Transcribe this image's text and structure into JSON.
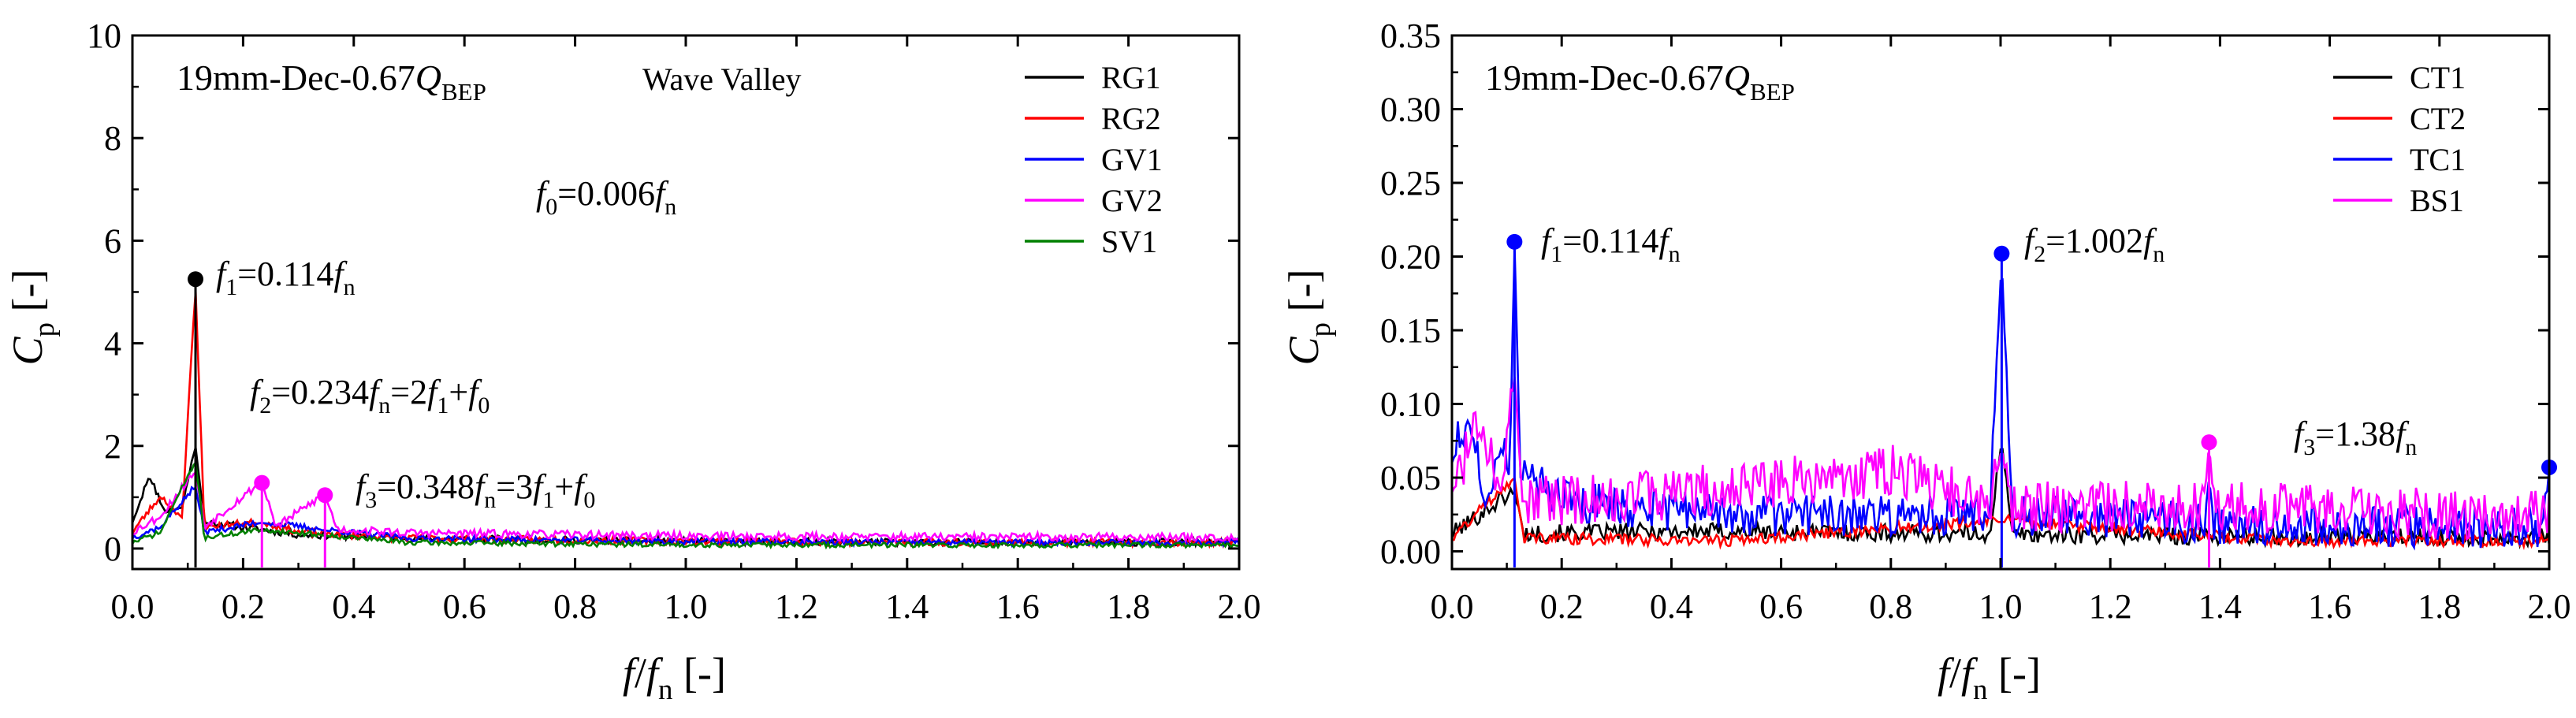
{
  "colors": {
    "black": "#000000",
    "red": "#ff0000",
    "blue": "#0000ff",
    "magenta": "#ff00ff",
    "green": "#008000"
  },
  "chart_data": [
    {
      "type": "line",
      "title": "",
      "case_label": {
        "base": "19mm-Dec-0.67",
        "var": "Q",
        "sub": "BEP"
      },
      "tag": "Wave Valley",
      "xlim": [
        0,
        2.0
      ],
      "ylim": [
        -0.4,
        10
      ],
      "xticks": [
        0.0,
        0.2,
        0.4,
        0.6,
        0.8,
        1.0,
        1.2,
        1.4,
        1.6,
        1.8,
        2.0
      ],
      "yticks": [
        0,
        2,
        4,
        6,
        8,
        10
      ],
      "xtick_labels": [
        "0.0",
        "0.2",
        "0.4",
        "0.6",
        "0.8",
        "1.0",
        "1.2",
        "1.4",
        "1.6",
        "1.8",
        "2.0"
      ],
      "ytick_labels": [
        "0",
        "2",
        "4",
        "6",
        "8",
        "10"
      ],
      "xlabel": {
        "num": "f",
        "slash": "/",
        "den": "f",
        "sub": "n",
        "unit": "[-]"
      },
      "ylabel": {
        "sym": "C",
        "sub": "p",
        "unit": "[-]"
      },
      "legend": [
        "RG1",
        "RG2",
        "GV1",
        "GV2",
        "SV1"
      ],
      "series": [
        {
          "name": "RG1",
          "color_key": "black",
          "noise_seed": 11,
          "base": 0.2,
          "noise_amp": 0.14,
          "points": [
            [
              0.0,
              0.5
            ],
            [
              0.03,
              1.4
            ],
            [
              0.06,
              0.7
            ],
            [
              0.09,
              0.8
            ],
            [
              0.114,
              2.0
            ],
            [
              0.13,
              0.5
            ],
            [
              0.2,
              0.4
            ],
            [
              0.3,
              0.25
            ],
            [
              0.5,
              0.18
            ],
            [
              1.0,
              0.12
            ],
            [
              1.5,
              0.1
            ],
            [
              2.0,
              0.1
            ]
          ]
        },
        {
          "name": "RG2",
          "color_key": "red",
          "noise_seed": 23,
          "base": 0.2,
          "noise_amp": 0.14,
          "points": [
            [
              0.0,
              0.3
            ],
            [
              0.05,
              1.0
            ],
            [
              0.09,
              0.6
            ],
            [
              0.114,
              5.1
            ],
            [
              0.13,
              0.4
            ],
            [
              0.234,
              0.5
            ],
            [
              0.3,
              0.3
            ],
            [
              0.5,
              0.18
            ],
            [
              1.0,
              0.12
            ],
            [
              1.5,
              0.1
            ],
            [
              2.0,
              0.1
            ]
          ]
        },
        {
          "name": "GV1",
          "color_key": "blue",
          "noise_seed": 37,
          "base": 0.15,
          "noise_amp": 0.12,
          "points": [
            [
              0.0,
              0.2
            ],
            [
              0.05,
              0.4
            ],
            [
              0.114,
              1.2
            ],
            [
              0.13,
              0.3
            ],
            [
              0.234,
              0.5
            ],
            [
              0.348,
              0.35
            ],
            [
              0.5,
              0.18
            ],
            [
              1.0,
              0.12
            ],
            [
              1.5,
              0.1
            ],
            [
              2.0,
              0.1
            ]
          ]
        },
        {
          "name": "GV2",
          "color_key": "magenta",
          "noise_seed": 53,
          "base": 0.25,
          "noise_amp": 0.16,
          "points": [
            [
              0.0,
              0.3
            ],
            [
              0.05,
              0.6
            ],
            [
              0.114,
              1.5
            ],
            [
              0.13,
              0.4
            ],
            [
              0.234,
              1.28
            ],
            [
              0.26,
              0.4
            ],
            [
              0.348,
              1.04
            ],
            [
              0.37,
              0.35
            ],
            [
              0.5,
              0.28
            ],
            [
              1.0,
              0.22
            ],
            [
              1.5,
              0.2
            ],
            [
              2.0,
              0.2
            ]
          ]
        },
        {
          "name": "SV1",
          "color_key": "green",
          "noise_seed": 71,
          "base": 0.12,
          "noise_amp": 0.1,
          "points": [
            [
              0.0,
              0.1
            ],
            [
              0.05,
              0.3
            ],
            [
              0.114,
              1.7
            ],
            [
              0.13,
              0.2
            ],
            [
              0.234,
              0.35
            ],
            [
              0.348,
              0.25
            ],
            [
              0.5,
              0.1
            ],
            [
              1.0,
              0.06
            ],
            [
              1.5,
              0.05
            ],
            [
              2.0,
              0.05
            ]
          ]
        }
      ],
      "markers": [
        {
          "x": 0.114,
          "y": 5.25,
          "color_key": "black"
        },
        {
          "x": 0.234,
          "y": 1.28,
          "color_key": "magenta"
        },
        {
          "x": 0.348,
          "y": 1.04,
          "color_key": "magenta"
        }
      ],
      "annotations": [
        {
          "parts": [
            [
              "i",
              "f"
            ],
            [
              "sub",
              "0"
            ],
            [
              "r",
              "=0.006"
            ],
            [
              "i",
              "f"
            ],
            [
              "sub",
              "n"
            ]
          ]
        },
        {
          "parts": [
            [
              "i",
              "f"
            ],
            [
              "sub",
              "1"
            ],
            [
              "r",
              "=0.114"
            ],
            [
              "i",
              "f"
            ],
            [
              "sub",
              "n"
            ]
          ]
        },
        {
          "parts": [
            [
              "i",
              "f"
            ],
            [
              "sub",
              "2"
            ],
            [
              "r",
              "=0.234"
            ],
            [
              "i",
              "f"
            ],
            [
              "sub",
              "n"
            ],
            [
              "r",
              "=2"
            ],
            [
              "i",
              "f"
            ],
            [
              "sub",
              "1"
            ],
            [
              "r",
              "+"
            ],
            [
              "i",
              "f"
            ],
            [
              "sub",
              "0"
            ]
          ]
        },
        {
          "parts": [
            [
              "i",
              "f"
            ],
            [
              "sub",
              "3"
            ],
            [
              "r",
              "=0.348"
            ],
            [
              "i",
              "f"
            ],
            [
              "sub",
              "n"
            ],
            [
              "r",
              "=3"
            ],
            [
              "i",
              "f"
            ],
            [
              "sub",
              "1"
            ],
            [
              "r",
              "+"
            ],
            [
              "i",
              "f"
            ],
            [
              "sub",
              "0"
            ]
          ]
        }
      ]
    },
    {
      "type": "line",
      "title": "",
      "case_label": {
        "base": "19mm-Dec-0.67",
        "var": "Q",
        "sub": "BEP"
      },
      "tag": "",
      "xlim": [
        0,
        2.0
      ],
      "ylim": [
        -0.012,
        0.35
      ],
      "xticks": [
        0.0,
        0.2,
        0.4,
        0.6,
        0.8,
        1.0,
        1.2,
        1.4,
        1.6,
        1.8,
        2.0
      ],
      "yticks": [
        0.0,
        0.05,
        0.1,
        0.15,
        0.2,
        0.25,
        0.3,
        0.35
      ],
      "xtick_labels": [
        "0.0",
        "0.2",
        "0.4",
        "0.6",
        "0.8",
        "1.0",
        "1.2",
        "1.4",
        "1.6",
        "1.8",
        "2.0"
      ],
      "ytick_labels": [
        "0.00",
        "0.05",
        "0.10",
        "0.15",
        "0.20",
        "0.25",
        "0.30",
        "0.35"
      ],
      "xlabel": {
        "num": "f",
        "slash": "/",
        "den": "f",
        "sub": "n",
        "unit": "[-]"
      },
      "ylabel": {
        "sym": "C",
        "sub": "p",
        "unit": "[-]"
      },
      "legend": [
        "CT1",
        "CT2",
        "TC1",
        "BS1"
      ],
      "series": [
        {
          "name": "CT1",
          "color_key": "black",
          "noise_seed": 101,
          "base": 0.008,
          "noise_amp": 0.012,
          "points": [
            [
              0.0,
              0.01
            ],
            [
              0.114,
              0.04
            ],
            [
              0.13,
              0.01
            ],
            [
              0.4,
              0.012
            ],
            [
              0.98,
              0.01
            ],
            [
              1.002,
              0.075
            ],
            [
              1.02,
              0.01
            ],
            [
              1.5,
              0.008
            ],
            [
              2.0,
              0.008
            ]
          ]
        },
        {
          "name": "CT2",
          "color_key": "red",
          "noise_seed": 131,
          "base": 0.006,
          "noise_amp": 0.008,
          "points": [
            [
              0.0,
              0.008
            ],
            [
              0.114,
              0.05
            ],
            [
              0.13,
              0.008
            ],
            [
              0.5,
              0.006
            ],
            [
              1.002,
              0.02
            ],
            [
              1.5,
              0.006
            ],
            [
              2.0,
              0.006
            ]
          ]
        },
        {
          "name": "TC1",
          "color_key": "blue",
          "noise_seed": 151,
          "base": 0.012,
          "noise_amp": 0.028,
          "points": [
            [
              0.0,
              0.06
            ],
            [
              0.03,
              0.09
            ],
            [
              0.06,
              0.03
            ],
            [
              0.09,
              0.07
            ],
            [
              0.105,
              0.05
            ],
            [
              0.114,
              0.21
            ],
            [
              0.125,
              0.05
            ],
            [
              0.2,
              0.03
            ],
            [
              0.5,
              0.02
            ],
            [
              0.98,
              0.02
            ],
            [
              1.002,
              0.2
            ],
            [
              1.02,
              0.02
            ],
            [
              1.37,
              0.015
            ],
            [
              1.38,
              0.05
            ],
            [
              1.39,
              0.015
            ],
            [
              1.8,
              0.012
            ],
            [
              1.99,
              0.012
            ],
            [
              2.0,
              0.057
            ]
          ]
        },
        {
          "name": "BS1",
          "color_key": "magenta",
          "noise_seed": 181,
          "base": 0.015,
          "noise_amp": 0.035,
          "points": [
            [
              0.0,
              0.04
            ],
            [
              0.05,
              0.08
            ],
            [
              0.09,
              0.04
            ],
            [
              0.114,
              0.12
            ],
            [
              0.13,
              0.03
            ],
            [
              0.3,
              0.03
            ],
            [
              0.81,
              0.05
            ],
            [
              0.98,
              0.025
            ],
            [
              1.002,
              0.07
            ],
            [
              1.02,
              0.025
            ],
            [
              1.37,
              0.025
            ],
            [
              1.38,
              0.074
            ],
            [
              1.39,
              0.025
            ],
            [
              1.8,
              0.02
            ],
            [
              2.0,
              0.02
            ]
          ]
        }
      ],
      "markers": [
        {
          "x": 0.114,
          "y": 0.21,
          "color_key": "blue"
        },
        {
          "x": 1.002,
          "y": 0.202,
          "color_key": "blue"
        },
        {
          "x": 1.38,
          "y": 0.074,
          "color_key": "magenta"
        },
        {
          "x": 2.0,
          "y": 0.057,
          "color_key": "blue"
        }
      ],
      "annotations": [
        {
          "parts": [
            [
              "i",
              "f"
            ],
            [
              "sub",
              "1"
            ],
            [
              "r",
              "=0.114"
            ],
            [
              "i",
              "f"
            ],
            [
              "sub",
              "n"
            ]
          ]
        },
        {
          "parts": [
            [
              "i",
              "f"
            ],
            [
              "sub",
              "2"
            ],
            [
              "r",
              "=1.002"
            ],
            [
              "i",
              "f"
            ],
            [
              "sub",
              "n"
            ]
          ]
        },
        {
          "parts": [
            [
              "i",
              "f"
            ],
            [
              "sub",
              "3"
            ],
            [
              "r",
              "=1.38"
            ],
            [
              "i",
              "f"
            ],
            [
              "sub",
              "n"
            ]
          ]
        }
      ]
    }
  ]
}
